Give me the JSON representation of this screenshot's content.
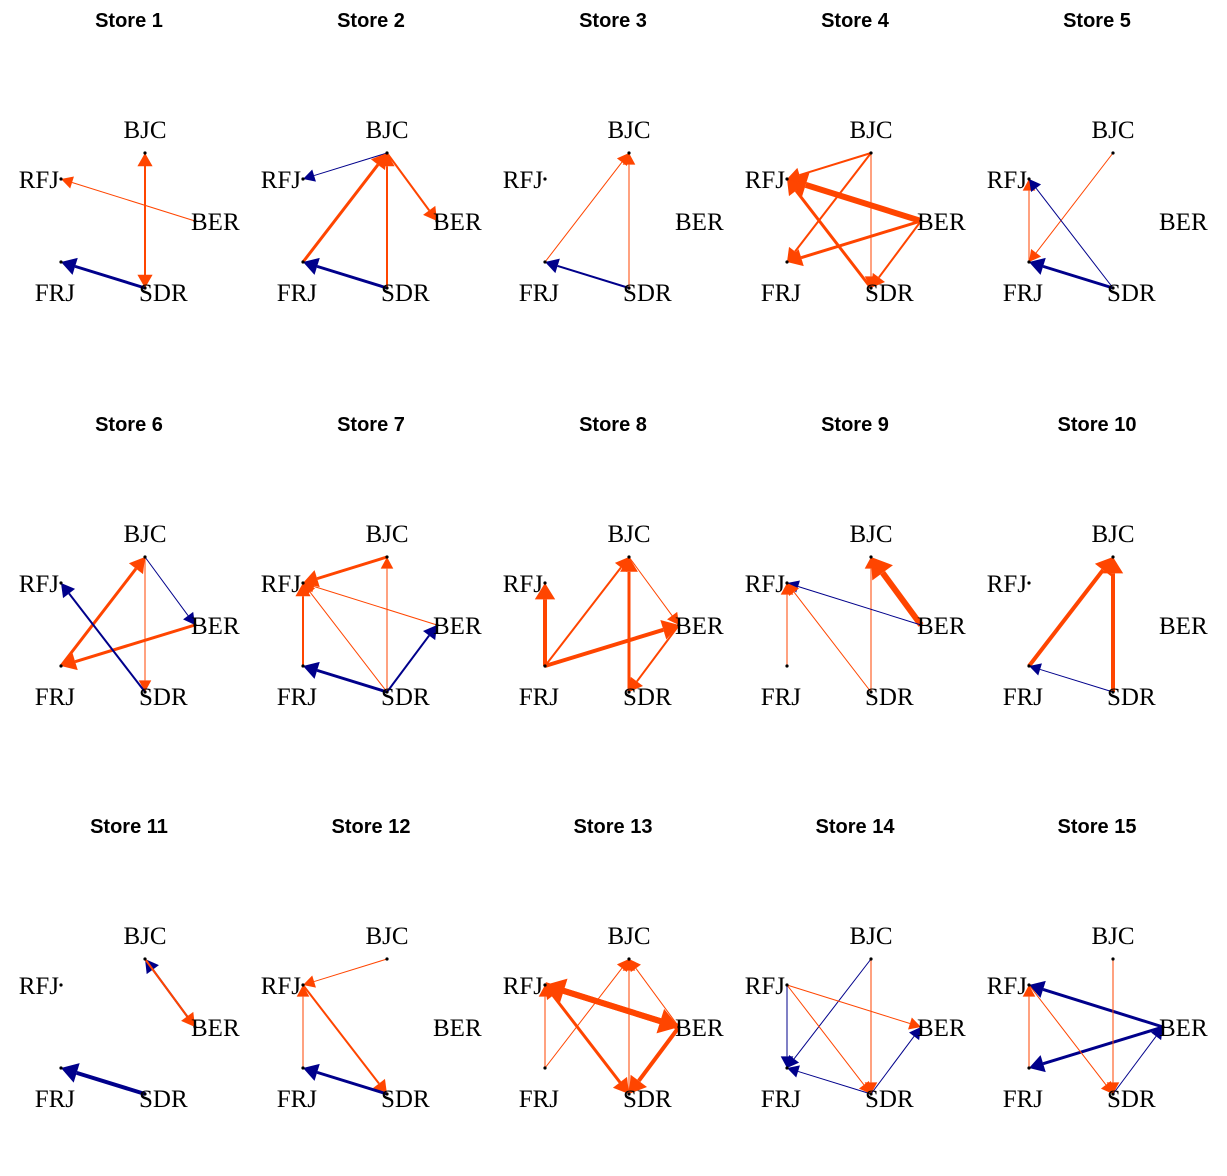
{
  "colors": {
    "positive": "#ff4500",
    "negative": "#00008b",
    "node": "#000000"
  },
  "nodes": [
    "BJC",
    "BER",
    "SDR",
    "FRJ",
    "RFJ"
  ],
  "panels": [
    {
      "title": "Store 1",
      "edges": [
        {
          "from": "BER",
          "to": "RFJ",
          "weight": 1,
          "color": "positive"
        },
        {
          "from": "BJC",
          "to": "SDR",
          "weight": 2,
          "color": "positive"
        },
        {
          "from": "SDR",
          "to": "BJC",
          "weight": 2,
          "color": "positive"
        },
        {
          "from": "SDR",
          "to": "FRJ",
          "weight": 3,
          "color": "negative"
        }
      ]
    },
    {
      "title": "Store 2",
      "edges": [
        {
          "from": "BJC",
          "to": "RFJ",
          "weight": 1,
          "color": "negative"
        },
        {
          "from": "BJC",
          "to": "BER",
          "weight": 2,
          "color": "positive"
        },
        {
          "from": "FRJ",
          "to": "BJC",
          "weight": 3,
          "color": "positive"
        },
        {
          "from": "SDR",
          "to": "BJC",
          "weight": 2,
          "color": "positive"
        },
        {
          "from": "SDR",
          "to": "FRJ",
          "weight": 3,
          "color": "negative"
        }
      ]
    },
    {
      "title": "Store 3",
      "edges": [
        {
          "from": "FRJ",
          "to": "BJC",
          "weight": 1,
          "color": "positive"
        },
        {
          "from": "SDR",
          "to": "BJC",
          "weight": 1,
          "color": "positive"
        },
        {
          "from": "SDR",
          "to": "FRJ",
          "weight": 2,
          "color": "negative"
        }
      ]
    },
    {
      "title": "Store 4",
      "edges": [
        {
          "from": "BER",
          "to": "RFJ",
          "weight": 6,
          "color": "positive"
        },
        {
          "from": "BJC",
          "to": "RFJ",
          "weight": 2,
          "color": "positive"
        },
        {
          "from": "SDR",
          "to": "RFJ",
          "weight": 3,
          "color": "positive"
        },
        {
          "from": "BER",
          "to": "FRJ",
          "weight": 3,
          "color": "positive"
        },
        {
          "from": "BJC",
          "to": "FRJ",
          "weight": 2,
          "color": "positive"
        },
        {
          "from": "BER",
          "to": "SDR",
          "weight": 2,
          "color": "positive"
        },
        {
          "from": "BJC",
          "to": "SDR",
          "weight": 1,
          "color": "positive"
        }
      ]
    },
    {
      "title": "Store 5",
      "edges": [
        {
          "from": "BJC",
          "to": "FRJ",
          "weight": 1,
          "color": "positive"
        },
        {
          "from": "FRJ",
          "to": "RFJ",
          "weight": 1,
          "color": "positive"
        },
        {
          "from": "SDR",
          "to": "RFJ",
          "weight": 1,
          "color": "negative"
        },
        {
          "from": "SDR",
          "to": "FRJ",
          "weight": 3,
          "color": "negative"
        }
      ]
    },
    {
      "title": "Store 6",
      "edges": [
        {
          "from": "BJC",
          "to": "BER",
          "weight": 1,
          "color": "negative"
        },
        {
          "from": "BJC",
          "to": "SDR",
          "weight": 1,
          "color": "positive"
        },
        {
          "from": "FRJ",
          "to": "BJC",
          "weight": 3,
          "color": "positive"
        },
        {
          "from": "BER",
          "to": "FRJ",
          "weight": 3,
          "color": "positive"
        },
        {
          "from": "SDR",
          "to": "RFJ",
          "weight": 2,
          "color": "negative"
        }
      ]
    },
    {
      "title": "Store 7",
      "edges": [
        {
          "from": "BJC",
          "to": "RFJ",
          "weight": 3,
          "color": "positive"
        },
        {
          "from": "BER",
          "to": "RFJ",
          "weight": 1,
          "color": "positive"
        },
        {
          "from": "SDR",
          "to": "RFJ",
          "weight": 1,
          "color": "positive"
        },
        {
          "from": "FRJ",
          "to": "RFJ",
          "weight": 2,
          "color": "positive"
        },
        {
          "from": "SDR",
          "to": "BJC",
          "weight": 1,
          "color": "positive"
        },
        {
          "from": "SDR",
          "to": "BER",
          "weight": 2,
          "color": "negative"
        },
        {
          "from": "SDR",
          "to": "FRJ",
          "weight": 3,
          "color": "negative"
        }
      ]
    },
    {
      "title": "Store 8",
      "edges": [
        {
          "from": "FRJ",
          "to": "RFJ",
          "weight": 4,
          "color": "positive"
        },
        {
          "from": "FRJ",
          "to": "BJC",
          "weight": 2,
          "color": "positive"
        },
        {
          "from": "SDR",
          "to": "BJC",
          "weight": 3,
          "color": "positive"
        },
        {
          "from": "FRJ",
          "to": "BER",
          "weight": 4,
          "color": "positive"
        },
        {
          "from": "BJC",
          "to": "BER",
          "weight": 1,
          "color": "positive"
        },
        {
          "from": "BER",
          "to": "SDR",
          "weight": 2,
          "color": "positive"
        }
      ]
    },
    {
      "title": "Store 9",
      "edges": [
        {
          "from": "BER",
          "to": "BJC",
          "weight": 6,
          "color": "positive"
        },
        {
          "from": "SDR",
          "to": "BJC",
          "weight": 1,
          "color": "positive"
        },
        {
          "from": "BER",
          "to": "RFJ",
          "weight": 1,
          "color": "negative"
        },
        {
          "from": "FRJ",
          "to": "RFJ",
          "weight": 1,
          "color": "positive"
        },
        {
          "from": "SDR",
          "to": "RFJ",
          "weight": 1,
          "color": "positive"
        }
      ]
    },
    {
      "title": "Store 10",
      "edges": [
        {
          "from": "FRJ",
          "to": "BJC",
          "weight": 4,
          "color": "positive"
        },
        {
          "from": "SDR",
          "to": "BJC",
          "weight": 4,
          "color": "positive"
        },
        {
          "from": "SDR",
          "to": "FRJ",
          "weight": 1,
          "color": "negative"
        }
      ]
    },
    {
      "title": "Store 11",
      "edges": [
        {
          "from": "BER",
          "to": "BJC",
          "weight": 2,
          "color": "negative"
        },
        {
          "from": "BJC",
          "to": "BER",
          "weight": 2,
          "color": "positive"
        },
        {
          "from": "SDR",
          "to": "FRJ",
          "weight": 4,
          "color": "negative"
        }
      ]
    },
    {
      "title": "Store 12",
      "edges": [
        {
          "from": "BJC",
          "to": "RFJ",
          "weight": 1,
          "color": "positive"
        },
        {
          "from": "FRJ",
          "to": "RFJ",
          "weight": 1,
          "color": "positive"
        },
        {
          "from": "RFJ",
          "to": "SDR",
          "weight": 2,
          "color": "positive"
        },
        {
          "from": "SDR",
          "to": "FRJ",
          "weight": 3,
          "color": "negative"
        }
      ]
    },
    {
      "title": "Store 13",
      "edges": [
        {
          "from": "BER",
          "to": "RFJ",
          "weight": 6,
          "color": "positive"
        },
        {
          "from": "RFJ",
          "to": "BER",
          "weight": 6,
          "color": "positive"
        },
        {
          "from": "FRJ",
          "to": "BJC",
          "weight": 1,
          "color": "positive"
        },
        {
          "from": "SDR",
          "to": "BJC",
          "weight": 1,
          "color": "positive"
        },
        {
          "from": "BER",
          "to": "BJC",
          "weight": 1,
          "color": "positive"
        },
        {
          "from": "FRJ",
          "to": "RFJ",
          "weight": 1,
          "color": "positive"
        },
        {
          "from": "SDR",
          "to": "RFJ",
          "weight": 2,
          "color": "positive"
        },
        {
          "from": "RFJ",
          "to": "SDR",
          "weight": 3,
          "color": "positive"
        },
        {
          "from": "BER",
          "to": "SDR",
          "weight": 4,
          "color": "positive"
        }
      ]
    },
    {
      "title": "Store 14",
      "edges": [
        {
          "from": "BJC",
          "to": "FRJ",
          "weight": 1,
          "color": "negative"
        },
        {
          "from": "RFJ",
          "to": "FRJ",
          "weight": 1,
          "color": "negative"
        },
        {
          "from": "SDR",
          "to": "FRJ",
          "weight": 1,
          "color": "negative"
        },
        {
          "from": "RFJ",
          "to": "BER",
          "weight": 1,
          "color": "positive"
        },
        {
          "from": "RFJ",
          "to": "SDR",
          "weight": 1,
          "color": "positive"
        },
        {
          "from": "BJC",
          "to": "SDR",
          "weight": 1,
          "color": "positive"
        },
        {
          "from": "SDR",
          "to": "BER",
          "weight": 1,
          "color": "negative"
        }
      ]
    },
    {
      "title": "Store 15",
      "edges": [
        {
          "from": "BER",
          "to": "RFJ",
          "weight": 3,
          "color": "negative"
        },
        {
          "from": "BER",
          "to": "FRJ",
          "weight": 3,
          "color": "negative"
        },
        {
          "from": "FRJ",
          "to": "RFJ",
          "weight": 1,
          "color": "positive"
        },
        {
          "from": "SDR",
          "to": "BER",
          "weight": 1,
          "color": "negative"
        },
        {
          "from": "RFJ",
          "to": "SDR",
          "weight": 1,
          "color": "positive"
        },
        {
          "from": "BJC",
          "to": "SDR",
          "weight": 1,
          "color": "positive"
        }
      ]
    }
  ]
}
